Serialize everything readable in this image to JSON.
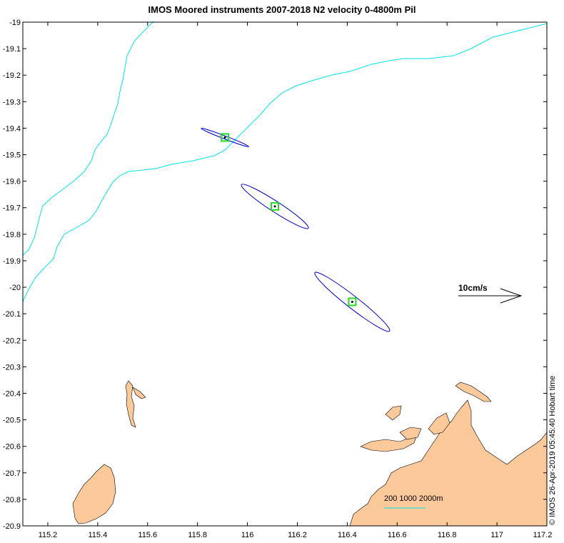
{
  "title": "IMOS Moored instruments 2007-2018 N2 velocity 0-4800m Pil",
  "credit": "© IMOS 26-Apr-2019 05:45:40 Hobart time",
  "scale_label": "10cm/s",
  "depth_legend": "200 1000 2000m",
  "colors": {
    "land": "#fcc99b",
    "contour": "#00e5ee",
    "ellipse": "#0000cc",
    "mooring": "#22dd22"
  },
  "chart_data": {
    "type": "map",
    "xlim": [
      115.1,
      117.2
    ],
    "ylim": [
      -20.9,
      -19.0
    ],
    "x_ticks": [
      "115.2",
      "115.4",
      "115.6",
      "115.8",
      "116",
      "116.2",
      "116.4",
      "116.6",
      "116.8",
      "117",
      "117.2"
    ],
    "x_tick_values": [
      115.2,
      115.4,
      115.6,
      115.8,
      116.0,
      116.2,
      116.4,
      116.6,
      116.8,
      117.0,
      117.2
    ],
    "y_ticks": [
      "-19",
      "-19.1",
      "-19.2",
      "-19.3",
      "-19.4",
      "-19.5",
      "-19.6",
      "-19.7",
      "-19.8",
      "-19.9",
      "-20",
      "-20.1",
      "-20.2",
      "-20.3",
      "-20.4",
      "-20.5",
      "-20.6",
      "-20.7",
      "-20.8",
      "-20.9"
    ],
    "y_tick_values": [
      -19.0,
      -19.1,
      -19.2,
      -19.3,
      -19.4,
      -19.5,
      -19.6,
      -19.7,
      -19.8,
      -19.9,
      -20.0,
      -20.1,
      -20.2,
      -20.3,
      -20.4,
      -20.5,
      -20.6,
      -20.7,
      -20.8,
      -20.9
    ],
    "moorings": [
      {
        "lon": 115.91,
        "lat": -19.435,
        "ellipse_major_deg": 0.102,
        "ellipse_minor_deg": 0.006,
        "angle_deg": 21
      },
      {
        "lon": 116.11,
        "lat": -19.695,
        "ellipse_major_deg": 0.16,
        "ellipse_minor_deg": 0.021,
        "angle_deg": 33
      },
      {
        "lon": 116.42,
        "lat": -20.055,
        "ellipse_major_deg": 0.19,
        "ellipse_minor_deg": 0.024,
        "angle_deg": 38
      }
    ]
  }
}
